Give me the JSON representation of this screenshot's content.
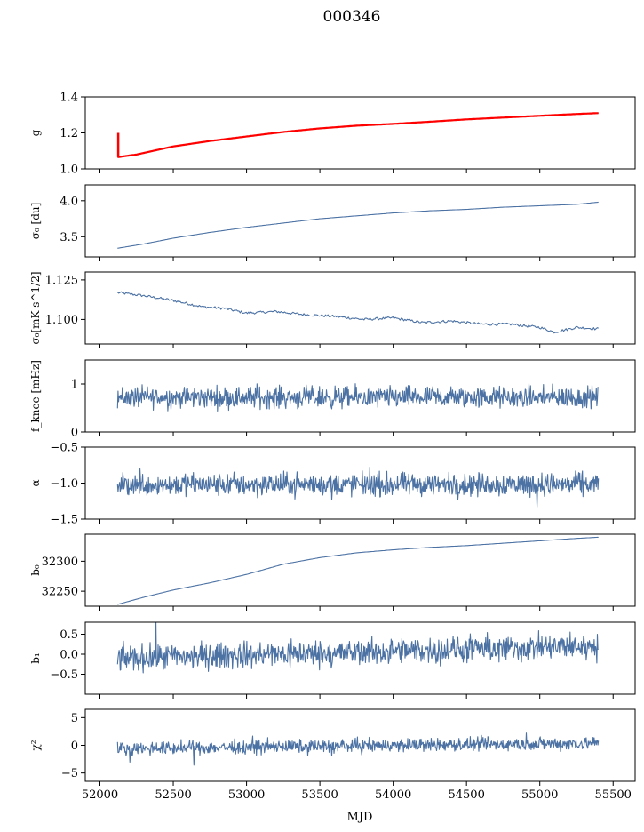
{
  "figure": {
    "title": "000346",
    "xlabel": "MJD"
  },
  "chart_data": {
    "type": "line",
    "title": "000346",
    "xlabel": "MJD",
    "xlim": [
      51900,
      55650
    ],
    "x_ticks": [
      52000,
      52500,
      53000,
      53500,
      54000,
      54500,
      55000,
      55500
    ],
    "x_tick_labels": [
      "52000",
      "52500",
      "53000",
      "53500",
      "54000",
      "54500",
      "55000",
      "55500"
    ],
    "x_start": 52120,
    "x_end": 55400,
    "line_color": "#4c72a4",
    "panels": [
      {
        "id": "g",
        "ylabel": "g",
        "ylim": [
          1.0,
          1.4
        ],
        "yticks": [
          1.0,
          1.2,
          1.4
        ],
        "ytick_labels": [
          "1.0",
          "1.2",
          "1.4"
        ],
        "series": [
          {
            "color": "#4c72a4",
            "kind": "smooth",
            "x": [
              52120,
              52250,
              52500,
              52750,
              53000,
              53250,
              53500,
              53750,
              54000,
              54250,
              54500,
              54750,
              55000,
              55250,
              55400
            ],
            "y": [
              1.065,
              1.08,
              1.125,
              1.155,
              1.18,
              1.205,
              1.225,
              1.24,
              1.25,
              1.262,
              1.275,
              1.285,
              1.295,
              1.305,
              1.31
            ]
          },
          {
            "color": "#ff0000",
            "kind": "smooth",
            "x": [
              52120,
              52250,
              52500,
              52750,
              53000,
              53250,
              53500,
              53750,
              54000,
              54250,
              54500,
              54750,
              55000,
              55250,
              55400
            ],
            "y": [
              1.065,
              1.08,
              1.125,
              1.155,
              1.18,
              1.205,
              1.225,
              1.24,
              1.25,
              1.262,
              1.275,
              1.285,
              1.295,
              1.305,
              1.31
            ]
          },
          {
            "color": "#ff0000",
            "kind": "spike",
            "x": [
              52125,
              52125
            ],
            "y": [
              1.065,
              1.2
            ]
          }
        ]
      },
      {
        "id": "sigma0",
        "ylabel": "σ₀ [du]",
        "ylim": [
          3.22,
          4.22
        ],
        "yticks": [
          3.5,
          4.0
        ],
        "ytick_labels": [
          "3.5",
          "4.0"
        ],
        "series": [
          {
            "color": "#4c72a4",
            "kind": "smooth",
            "x": [
              52120,
              52300,
              52500,
              52750,
              53000,
              53250,
              53500,
              53750,
              54000,
              54250,
              54500,
              54750,
              55000,
              55250,
              55400
            ],
            "y": [
              3.34,
              3.4,
              3.48,
              3.56,
              3.63,
              3.69,
              3.75,
              3.79,
              3.83,
              3.86,
              3.88,
              3.91,
              3.93,
              3.95,
              3.98
            ]
          }
        ]
      },
      {
        "id": "sigma0_mk",
        "ylabel": "σ₀[mK s^1/2]",
        "ylim": [
          1.0845,
          1.13
        ],
        "yticks": [
          1.1,
          1.125
        ],
        "ytick_labels": [
          "1.100",
          "1.125"
        ],
        "series": [
          {
            "color": "#4c72a4",
            "kind": "smooth",
            "x": [
              52120,
              52300,
              52500,
              52700,
              52850,
              53000,
              53200,
              53400,
              53600,
              53800,
              54000,
              54200,
              54400,
              54600,
              54800,
              55000,
              55100,
              55250,
              55400
            ],
            "y": [
              1.117,
              1.115,
              1.112,
              1.108,
              1.107,
              1.104,
              1.105,
              1.103,
              1.102,
              1.1,
              1.101,
              1.098,
              1.099,
              1.097,
              1.097,
              1.095,
              1.092,
              1.095,
              1.094
            ]
          }
        ]
      },
      {
        "id": "fknee",
        "ylabel": "f_knee [mHz]",
        "ylim": [
          0,
          1.5
        ],
        "yticks": [
          0,
          1
        ],
        "ytick_labels": [
          "0",
          "1"
        ],
        "series": [
          {
            "color": "#4c72a4",
            "kind": "noise",
            "mean": 0.72,
            "amp": 0.17
          }
        ]
      },
      {
        "id": "alpha",
        "ylabel": "α",
        "ylim": [
          -1.5,
          -0.5
        ],
        "yticks": [
          -1.5,
          -1.0,
          -0.5
        ],
        "ytick_labels": [
          "−1.5",
          "−1.0",
          "−0.5"
        ],
        "series": [
          {
            "color": "#4c72a4",
            "kind": "noise",
            "mean": -1.02,
            "amp": 0.12
          }
        ]
      },
      {
        "id": "b0",
        "ylabel": "b₀",
        "ylim": [
          32225,
          32345
        ],
        "yticks": [
          32250,
          32300
        ],
        "ytick_labels": [
          "32250",
          "32300"
        ],
        "series": [
          {
            "color": "#4c72a4",
            "kind": "smooth",
            "x": [
              52120,
              52300,
              52500,
              52750,
              53000,
              53250,
              53500,
              53750,
              54000,
              54250,
              54500,
              54750,
              55000,
              55250,
              55400
            ],
            "y": [
              32228,
              32240,
              32252,
              32264,
              32278,
              32295,
              32306,
              32314,
              32319,
              32323,
              32326,
              32330,
              32334,
              32338,
              32340
            ]
          }
        ]
      },
      {
        "id": "b1",
        "ylabel": "b₁",
        "ylim": [
          -1.0,
          0.8
        ],
        "yticks": [
          -0.5,
          0.0,
          0.5
        ],
        "ytick_labels": [
          "−0.5",
          "0.0",
          "0.5"
        ],
        "series": [
          {
            "color": "#4c72a4",
            "kind": "noise",
            "mean": -0.1,
            "amp": 0.25
          }
        ]
      },
      {
        "id": "chi2",
        "ylabel": "χ²",
        "ylim": [
          -6.5,
          6.5
        ],
        "yticks": [
          -5,
          0,
          5
        ],
        "ytick_labels": [
          "−5",
          "0",
          "5"
        ],
        "series": [
          {
            "color": "#4c72a4",
            "kind": "noise",
            "mean": -0.6,
            "amp": 0.9
          }
        ]
      }
    ]
  }
}
